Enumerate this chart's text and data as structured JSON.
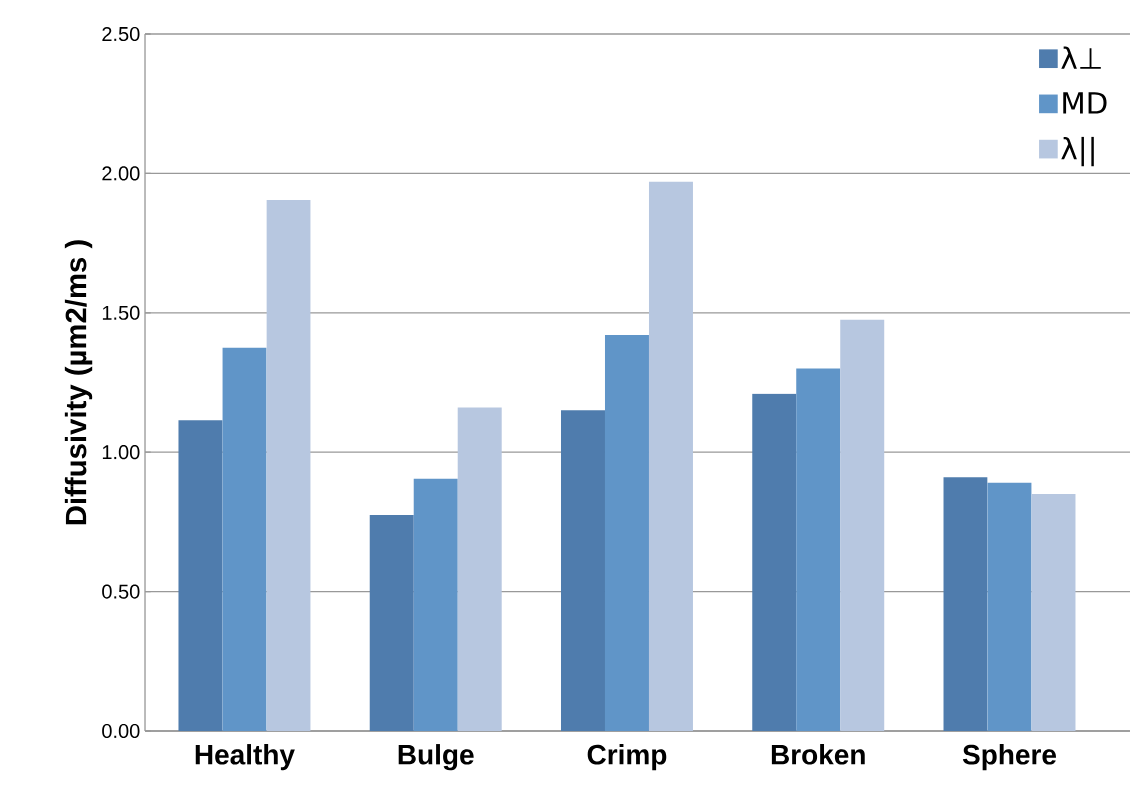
{
  "chart_data": {
    "type": "bar",
    "ylabel": "Diffusivity (µm2/ms )",
    "categories": [
      "Healthy",
      "Bulge",
      "Crimp",
      "Broken",
      "Sphere"
    ],
    "series": [
      {
        "name": "λ⊥",
        "color": "#4f7cad",
        "values": [
          1.115,
          0.775,
          1.15,
          1.21,
          0.91
        ]
      },
      {
        "name": "MD",
        "color": "#6095c8",
        "values": [
          1.375,
          0.905,
          1.42,
          1.3,
          0.89
        ]
      },
      {
        "name": "λ||",
        "color": "#b7c7e0",
        "values": [
          1.905,
          1.16,
          1.97,
          1.475,
          0.85
        ]
      }
    ],
    "ylim": [
      0,
      2.5
    ],
    "yticks": [
      {
        "value": 0,
        "label": "0.00"
      },
      {
        "value": 0.5,
        "label": "0.50"
      },
      {
        "value": 1,
        "label": "1.00"
      },
      {
        "value": 1.5,
        "label": "1.50"
      },
      {
        "value": 2,
        "label": "2.00"
      },
      {
        "value": 2.5,
        "label": "2.50"
      }
    ],
    "grid": "y",
    "legend": "top right"
  }
}
